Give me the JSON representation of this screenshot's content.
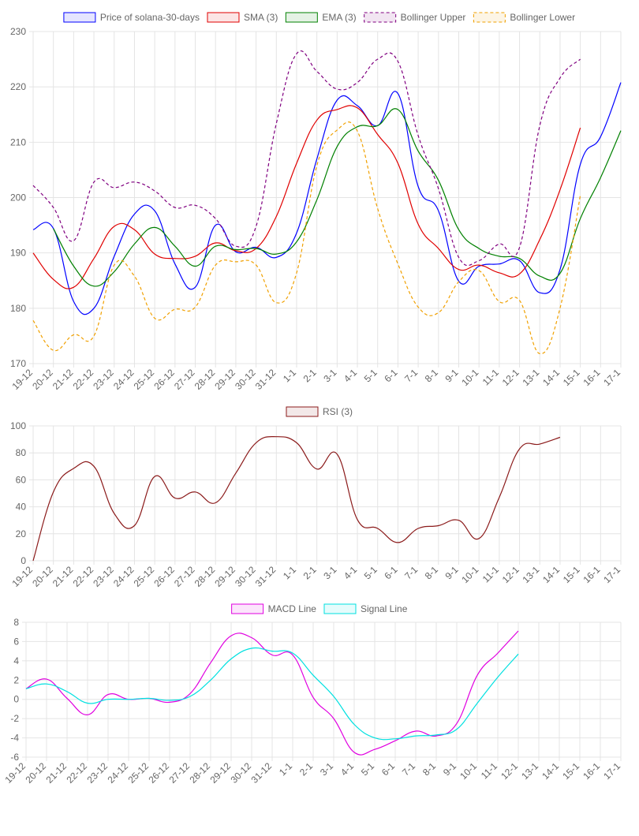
{
  "chart_data": [
    {
      "type": "line",
      "x": [
        "19-12",
        "20-12",
        "21-12",
        "22-12",
        "23-12",
        "24-12",
        "25-12",
        "26-12",
        "27-12",
        "28-12",
        "29-12",
        "30-12",
        "31-12",
        "1-1",
        "2-1",
        "3-1",
        "4-1",
        "5-1",
        "6-1",
        "7-1",
        "8-1",
        "9-1",
        "10-1",
        "11-1",
        "12-1",
        "13-1",
        "14-1",
        "15-1",
        "16-1",
        "17-1"
      ],
      "ylim": [
        170,
        230
      ],
      "yticks": [
        170,
        180,
        190,
        200,
        210,
        220,
        230
      ],
      "grid": true,
      "legend_position": "top",
      "series": [
        {
          "name": "Price of solana-30-days",
          "color": "#0000ff",
          "dash": false,
          "values": [
            194.2,
            194.4,
            181.2,
            180.0,
            189.4,
            197.0,
            197.6,
            188.0,
            183.8,
            195.0,
            190.2,
            191.0,
            189.2,
            193.6,
            207.0,
            217.6,
            216.6,
            213.0,
            218.8,
            202.0,
            197.6,
            184.9,
            187.6,
            188.0,
            188.6,
            182.8,
            187.0,
            206.0,
            211.0,
            220.8
          ]
        },
        {
          "name": "SMA (3)",
          "color": "#e00000",
          "dash": false,
          "values": [
            190.0,
            185.2,
            183.8,
            189.0,
            194.8,
            194.2,
            189.8,
            189.0,
            189.4,
            191.8,
            190.4,
            190.8,
            196.6,
            206.2,
            214.0,
            215.9,
            216.2,
            211.4,
            206.2,
            195.2,
            190.8,
            187.0,
            187.8,
            186.4,
            186.2,
            192.4,
            201.4,
            212.6,
            null,
            null
          ]
        },
        {
          "name": "EMA (3)",
          "color": "#008000",
          "dash": false,
          "values": [
            null,
            194.4,
            187.6,
            184.0,
            186.6,
            191.6,
            194.6,
            191.2,
            187.6,
            191.2,
            190.6,
            190.8,
            189.8,
            192.0,
            199.6,
            209.2,
            212.8,
            213.0,
            215.9,
            208.4,
            203.1,
            194.2,
            190.8,
            189.4,
            189.0,
            185.8,
            186.3,
            196.2,
            203.6,
            212.1
          ]
        },
        {
          "name": "Bollinger Upper",
          "color": "#800080",
          "dash": true,
          "values": [
            202.2,
            198.2,
            192.2,
            202.8,
            201.8,
            202.8,
            201.2,
            198.2,
            198.6,
            196.2,
            191.2,
            194.8,
            213.4,
            226.0,
            222.8,
            219.6,
            220.8,
            225.0,
            224.6,
            211.2,
            201.6,
            189.2,
            188.6,
            191.6,
            191.0,
            213.0,
            221.6,
            225.0,
            null,
            null
          ]
        },
        {
          "name": "Bollinger Lower",
          "color": "#f0a000",
          "dash": true,
          "values": [
            177.8,
            172.4,
            175.2,
            175.0,
            187.8,
            185.8,
            178.2,
            179.8,
            180.2,
            187.8,
            188.4,
            187.8,
            181.0,
            186.4,
            205.8,
            212.2,
            212.0,
            198.0,
            188.0,
            180.2,
            179.2,
            184.8,
            186.8,
            181.2,
            181.4,
            171.8,
            180.0,
            200.4,
            null,
            null
          ]
        }
      ]
    },
    {
      "type": "line",
      "x": [
        "19-12",
        "20-12",
        "21-12",
        "22-12",
        "23-12",
        "24-12",
        "25-12",
        "26-12",
        "27-12",
        "28-12",
        "29-12",
        "30-12",
        "31-12",
        "1-1",
        "2-1",
        "3-1",
        "4-1",
        "5-1",
        "6-1",
        "7-1",
        "8-1",
        "9-1",
        "10-1",
        "11-1",
        "12-1",
        "13-1",
        "14-1",
        "15-1",
        "16-1",
        "17-1"
      ],
      "ylim": [
        0,
        100
      ],
      "yticks": [
        0,
        20,
        40,
        60,
        80,
        100
      ],
      "grid": true,
      "legend_position": "top",
      "series": [
        {
          "name": "RSI (3)",
          "color": "#8b1a1a",
          "dash": false,
          "values": [
            0,
            51,
            68.5,
            70,
            35,
            26,
            62.5,
            46.5,
            51,
            43,
            65,
            87.5,
            92,
            87.5,
            68,
            79,
            30.5,
            24,
            13.5,
            24,
            26,
            30,
            16.5,
            47,
            83,
            86.5,
            91.5,
            null,
            null,
            null
          ]
        }
      ]
    },
    {
      "type": "line",
      "x": [
        "19-12",
        "20-12",
        "21-12",
        "22-12",
        "23-12",
        "24-12",
        "25-12",
        "26-12",
        "27-12",
        "28-12",
        "29-12",
        "30-12",
        "31-12",
        "1-1",
        "2-1",
        "3-1",
        "4-1",
        "5-1",
        "6-1",
        "7-1",
        "8-1",
        "9-1",
        "10-1",
        "11-1",
        "12-1",
        "13-1",
        "14-1",
        "15-1",
        "16-1",
        "17-1"
      ],
      "ylim": [
        -6,
        8
      ],
      "yticks": [
        -6,
        -4,
        -2,
        0,
        2,
        4,
        6,
        8
      ],
      "grid": true,
      "legend_position": "top",
      "series": [
        {
          "name": "MACD Line",
          "color": "#e000e0",
          "dash": false,
          "values": [
            1.1,
            2.1,
            0.1,
            -1.6,
            0.5,
            0.0,
            0.1,
            -0.3,
            0.6,
            3.8,
            6.6,
            6.4,
            4.6,
            4.6,
            0.2,
            -2.0,
            -5.5,
            -5.2,
            -4.3,
            -3.3,
            -3.8,
            -2.5,
            2.5,
            4.8,
            7.1,
            null,
            null,
            null,
            null,
            null
          ]
        },
        {
          "name": "Signal Line",
          "color": "#00e0e0",
          "dash": false,
          "values": [
            1.1,
            1.6,
            0.8,
            -0.4,
            0.0,
            0.0,
            0.1,
            -0.1,
            0.3,
            2.0,
            4.2,
            5.3,
            5.0,
            4.8,
            2.5,
            0.3,
            -2.6,
            -4.0,
            -4.1,
            -3.8,
            -3.7,
            -3.1,
            -0.4,
            2.3,
            4.7,
            null,
            null,
            null,
            null,
            null
          ]
        }
      ]
    }
  ]
}
